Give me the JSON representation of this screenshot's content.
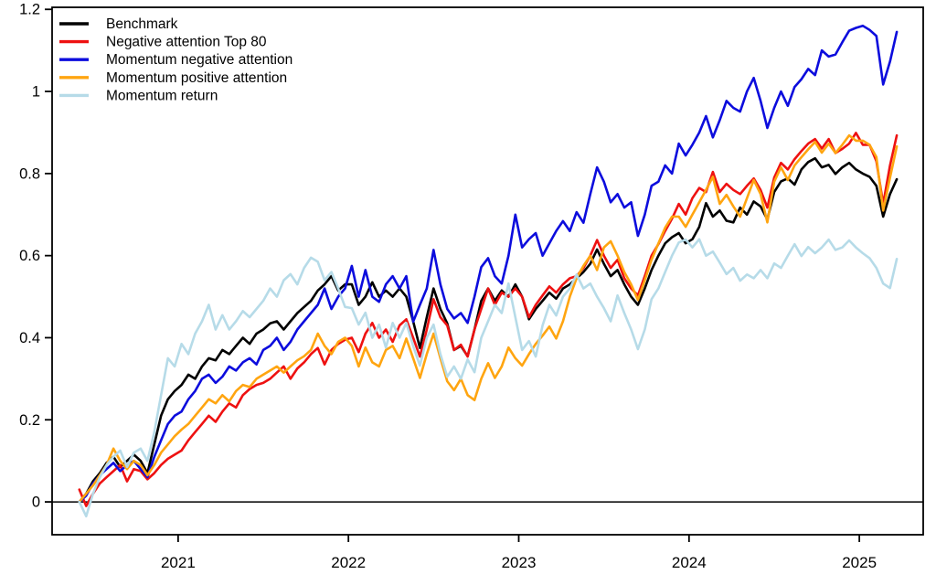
{
  "chart_data": {
    "type": "line",
    "title": "",
    "xlabel": "",
    "ylabel": "",
    "grid": false,
    "legend_position": "top-left",
    "zero_line": true,
    "x_axis": {
      "range": [
        2020.26,
        2025.375
      ],
      "ticks": [
        2021,
        2022,
        2023,
        2024,
        2025
      ],
      "tick_labels": [
        "2021",
        "2022",
        "2023",
        "2024",
        "2025"
      ]
    },
    "y_axis": {
      "range": [
        -0.08,
        1.205
      ],
      "ticks": [
        0,
        0.2,
        0.4,
        0.6,
        0.8,
        1.0,
        1.2
      ],
      "tick_labels": [
        "0",
        "0.2",
        "0.4",
        "0.6",
        "0.8",
        "1",
        "1.2"
      ]
    },
    "t0": 2020.42,
    "dt": 0.04,
    "series": [
      {
        "name": "Benchmark",
        "color": "#000000",
        "values": [
          0.0,
          0.02,
          0.05,
          0.07,
          0.095,
          0.11,
          0.085,
          0.1,
          0.115,
          0.1,
          0.07,
          0.14,
          0.21,
          0.25,
          0.27,
          0.285,
          0.31,
          0.3,
          0.33,
          0.35,
          0.345,
          0.37,
          0.36,
          0.38,
          0.4,
          0.385,
          0.41,
          0.42,
          0.435,
          0.44,
          0.42,
          0.44,
          0.46,
          0.475,
          0.49,
          0.515,
          0.53,
          0.55,
          0.515,
          0.53,
          0.53,
          0.48,
          0.5,
          0.535,
          0.5,
          0.515,
          0.5,
          0.52,
          0.5,
          0.44,
          0.375,
          0.45,
          0.52,
          0.47,
          0.435,
          0.37,
          0.38,
          0.355,
          0.42,
          0.49,
          0.52,
          0.49,
          0.515,
          0.5,
          0.53,
          0.5,
          0.445,
          0.47,
          0.49,
          0.51,
          0.495,
          0.52,
          0.53,
          0.545,
          0.56,
          0.58,
          0.615,
          0.58,
          0.55,
          0.565,
          0.53,
          0.5,
          0.48,
          0.52,
          0.565,
          0.6,
          0.63,
          0.645,
          0.655,
          0.63,
          0.64,
          0.67,
          0.728,
          0.695,
          0.71,
          0.685,
          0.681,
          0.717,
          0.7,
          0.732,
          0.72,
          0.688,
          0.755,
          0.781,
          0.788,
          0.773,
          0.81,
          0.828,
          0.837,
          0.815,
          0.821,
          0.799,
          0.815,
          0.826,
          0.81,
          0.8,
          0.792,
          0.77,
          0.695,
          0.75,
          0.786
        ]
      },
      {
        "name": "Negative attention Top 80",
        "color": "#ee1111",
        "values": [
          0.03,
          -0.01,
          0.02,
          0.045,
          0.06,
          0.075,
          0.09,
          0.05,
          0.08,
          0.075,
          0.055,
          0.07,
          0.09,
          0.105,
          0.115,
          0.125,
          0.15,
          0.17,
          0.19,
          0.21,
          0.195,
          0.22,
          0.24,
          0.23,
          0.26,
          0.275,
          0.285,
          0.29,
          0.3,
          0.315,
          0.33,
          0.3,
          0.325,
          0.34,
          0.36,
          0.375,
          0.335,
          0.37,
          0.385,
          0.395,
          0.4,
          0.365,
          0.41,
          0.436,
          0.4,
          0.42,
          0.39,
          0.43,
          0.445,
          0.4,
          0.354,
          0.42,
          0.494,
          0.45,
          0.43,
          0.37,
          0.383,
          0.354,
          0.42,
          0.47,
          0.52,
          0.48,
          0.51,
          0.5,
          0.52,
          0.5,
          0.45,
          0.48,
          0.503,
          0.525,
          0.51,
          0.53,
          0.545,
          0.55,
          0.57,
          0.6,
          0.638,
          0.6,
          0.57,
          0.59,
          0.545,
          0.52,
          0.503,
          0.55,
          0.6,
          0.628,
          0.66,
          0.69,
          0.726,
          0.7,
          0.74,
          0.765,
          0.755,
          0.804,
          0.755,
          0.775,
          0.76,
          0.75,
          0.77,
          0.788,
          0.76,
          0.717,
          0.79,
          0.826,
          0.81,
          0.835,
          0.855,
          0.873,
          0.884,
          0.861,
          0.884,
          0.85,
          0.86,
          0.873,
          0.899,
          0.87,
          0.87,
          0.83,
          0.726,
          0.82,
          0.893
        ]
      },
      {
        "name": "Momentum negative attention",
        "color": "#0c0cdd",
        "values": [
          0.0,
          0.015,
          0.045,
          0.065,
          0.08,
          0.095,
          0.075,
          0.09,
          0.1,
          0.08,
          0.06,
          0.11,
          0.15,
          0.19,
          0.21,
          0.22,
          0.25,
          0.27,
          0.3,
          0.31,
          0.29,
          0.305,
          0.33,
          0.32,
          0.34,
          0.35,
          0.335,
          0.37,
          0.38,
          0.4,
          0.37,
          0.39,
          0.42,
          0.44,
          0.46,
          0.48,
          0.52,
          0.47,
          0.5,
          0.52,
          0.575,
          0.5,
          0.565,
          0.5,
          0.4875,
          0.53,
          0.55,
          0.52,
          0.55,
          0.439,
          0.48,
          0.52,
          0.614,
          0.53,
          0.47,
          0.447,
          0.46,
          0.436,
          0.5,
          0.572,
          0.594,
          0.55,
          0.532,
          0.6,
          0.7,
          0.62,
          0.64,
          0.655,
          0.6,
          0.63,
          0.66,
          0.684,
          0.66,
          0.706,
          0.68,
          0.75,
          0.815,
          0.78,
          0.73,
          0.75,
          0.717,
          0.73,
          0.648,
          0.7,
          0.77,
          0.78,
          0.82,
          0.8,
          0.873,
          0.844,
          0.87,
          0.9,
          0.94,
          0.888,
          0.93,
          0.977,
          0.96,
          0.951,
          1.0,
          1.033,
          0.977,
          0.911,
          0.96,
          1.0,
          0.965,
          1.011,
          1.03,
          1.055,
          1.04,
          1.1,
          1.085,
          1.09,
          1.12,
          1.148,
          1.155,
          1.16,
          1.15,
          1.135,
          1.017,
          1.073,
          1.145
        ]
      },
      {
        "name": "Momentum positive attention",
        "color": "#ffa510",
        "values": [
          0.0,
          0.02,
          0.04,
          0.065,
          0.09,
          0.13,
          0.1,
          0.08,
          0.1,
          0.09,
          0.065,
          0.09,
          0.12,
          0.14,
          0.16,
          0.176,
          0.19,
          0.21,
          0.23,
          0.25,
          0.24,
          0.26,
          0.245,
          0.27,
          0.285,
          0.28,
          0.3,
          0.31,
          0.32,
          0.33,
          0.315,
          0.33,
          0.345,
          0.355,
          0.37,
          0.41,
          0.38,
          0.36,
          0.39,
          0.4,
          0.38,
          0.33,
          0.376,
          0.34,
          0.33,
          0.37,
          0.38,
          0.35,
          0.398,
          0.35,
          0.302,
          0.36,
          0.41,
          0.35,
          0.294,
          0.272,
          0.3,
          0.26,
          0.248,
          0.3,
          0.338,
          0.302,
          0.33,
          0.376,
          0.35,
          0.332,
          0.36,
          0.385,
          0.405,
          0.427,
          0.398,
          0.44,
          0.5,
          0.545,
          0.575,
          0.6,
          0.565,
          0.62,
          0.635,
          0.6,
          0.56,
          0.53,
          0.492,
          0.54,
          0.59,
          0.63,
          0.668,
          0.695,
          0.695,
          0.67,
          0.7,
          0.73,
          0.76,
          0.792,
          0.726,
          0.748,
          0.72,
          0.695,
          0.74,
          0.784,
          0.75,
          0.681,
          0.78,
          0.815,
          0.784,
          0.82,
          0.84,
          0.859,
          0.877,
          0.851,
          0.873,
          0.85,
          0.87,
          0.893,
          0.88,
          0.88,
          0.87,
          0.84,
          0.71,
          0.79,
          0.866
        ]
      },
      {
        "name": "Momentum return",
        "color": "#b6dbe8",
        "values": [
          0.0,
          -0.035,
          0.02,
          0.06,
          0.09,
          0.11,
          0.125,
          0.085,
          0.12,
          0.13,
          0.1,
          0.17,
          0.26,
          0.35,
          0.33,
          0.385,
          0.36,
          0.41,
          0.44,
          0.48,
          0.42,
          0.455,
          0.42,
          0.44,
          0.465,
          0.45,
          0.47,
          0.49,
          0.52,
          0.5,
          0.54,
          0.555,
          0.53,
          0.57,
          0.595,
          0.585,
          0.54,
          0.56,
          0.52,
          0.475,
          0.472,
          0.432,
          0.461,
          0.4,
          0.432,
          0.376,
          0.436,
          0.4,
          0.436,
          0.38,
          0.332,
          0.4,
          0.432,
          0.36,
          0.305,
          0.33,
          0.3,
          0.347,
          0.316,
          0.4,
          0.44,
          0.48,
          0.46,
          0.532,
          0.45,
          0.37,
          0.392,
          0.354,
          0.43,
          0.48,
          0.454,
          0.5,
          0.52,
          0.554,
          0.52,
          0.532,
          0.5,
          0.472,
          0.44,
          0.503,
          0.46,
          0.42,
          0.372,
          0.42,
          0.494,
          0.52,
          0.56,
          0.6,
          0.632,
          0.639,
          0.62,
          0.64,
          0.6,
          0.61,
          0.583,
          0.555,
          0.57,
          0.539,
          0.554,
          0.545,
          0.565,
          0.545,
          0.581,
          0.57,
          0.6,
          0.628,
          0.599,
          0.621,
          0.606,
          0.62,
          0.639,
          0.614,
          0.62,
          0.637,
          0.62,
          0.606,
          0.594,
          0.57,
          0.532,
          0.521,
          0.592
        ]
      }
    ]
  }
}
